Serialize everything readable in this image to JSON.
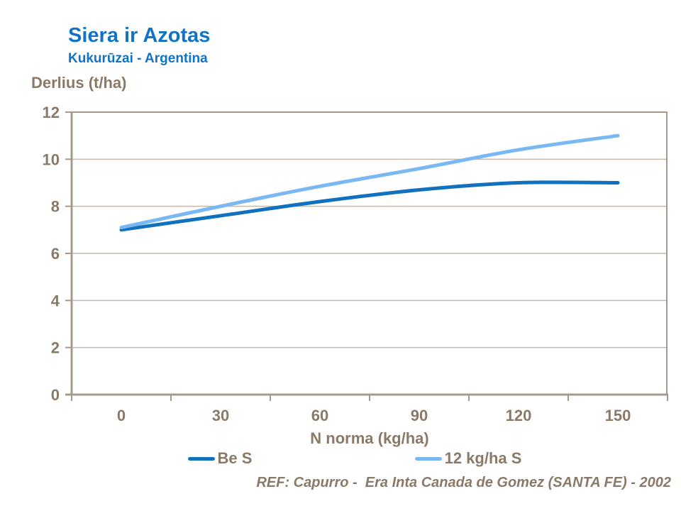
{
  "header": {
    "title": "Siera ir Azotas",
    "subtitle": "Kukurūzai - Argentina"
  },
  "footer": {
    "ref_text": "REF: Capurro -  Era Inta Canada de Gomez (SANTA FE) - 2002"
  },
  "colors": {
    "title_blue": "#1173C6",
    "text_brown": "#8B7967",
    "axis_line": "#A6998A",
    "gridline": "#C3B9AC",
    "series_dark_blue": "#1271BE",
    "series_light_blue": "#79B8F3"
  },
  "chart_data": {
    "type": "line",
    "title": "Siera ir Azotas",
    "subtitle": "Kukurūzai - Argentina",
    "xlabel": "N norma (kg/ha)",
    "ylabel": "Derlius (t/ha)",
    "categories": [
      "0",
      "30",
      "60",
      "90",
      "120",
      "150"
    ],
    "series": [
      {
        "name": "Be S",
        "color": "#1271BE",
        "values": [
          7.0,
          7.6,
          8.2,
          8.7,
          9.0,
          9.0
        ]
      },
      {
        "name": "12 kg/ha S",
        "color": "#79B8F3",
        "values": [
          7.1,
          8.0,
          8.85,
          9.6,
          10.4,
          11.0
        ]
      }
    ],
    "ylim": [
      0,
      12
    ],
    "yticks": [
      0,
      2,
      4,
      6,
      8,
      10,
      12
    ],
    "grid": true,
    "smooth": true,
    "legend_position": "bottom"
  }
}
